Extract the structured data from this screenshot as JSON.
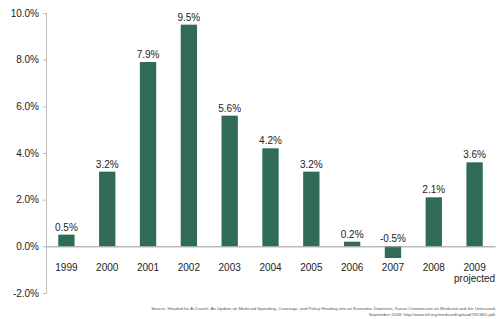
{
  "chart_data": {
    "type": "bar",
    "categories": [
      "1999",
      "2000",
      "2001",
      "2002",
      "2003",
      "2004",
      "2005",
      "2006",
      "2007",
      "2008",
      "2009\nprojected"
    ],
    "values": [
      0.5,
      3.2,
      7.9,
      9.5,
      5.6,
      4.2,
      3.2,
      0.2,
      -0.5,
      2.1,
      3.6
    ],
    "value_labels": [
      "0.5%",
      "3.2%",
      "7.9%",
      "9.5%",
      "5.6%",
      "4.2%",
      "3.2%",
      "0.2%",
      "-0.5%",
      "2.1%",
      "3.6%"
    ],
    "data_labels": true,
    "color": "#2f6b57",
    "ylim": [
      -2,
      10
    ],
    "yticks": [
      {
        "value": -2,
        "label": "-2.0%"
      },
      {
        "value": 0,
        "label": "0.0%"
      },
      {
        "value": 2,
        "label": "2.0%"
      },
      {
        "value": 4,
        "label": "4.0%"
      },
      {
        "value": 6,
        "label": "6.0%"
      },
      {
        "value": 8,
        "label": "8.0%"
      },
      {
        "value": 10,
        "label": "10.0%"
      }
    ],
    "grid": false,
    "annotations": [
      "Source: Headed for A Crunch: An Update on Medicaid Spending, Coverage, and Policy Heading into an Economic Downturn, Kaiser Commission on Medicaid and the Uninsured,",
      "September 2008. http://www.kff.org/medicaid/upload/7815ED.pdf."
    ]
  }
}
